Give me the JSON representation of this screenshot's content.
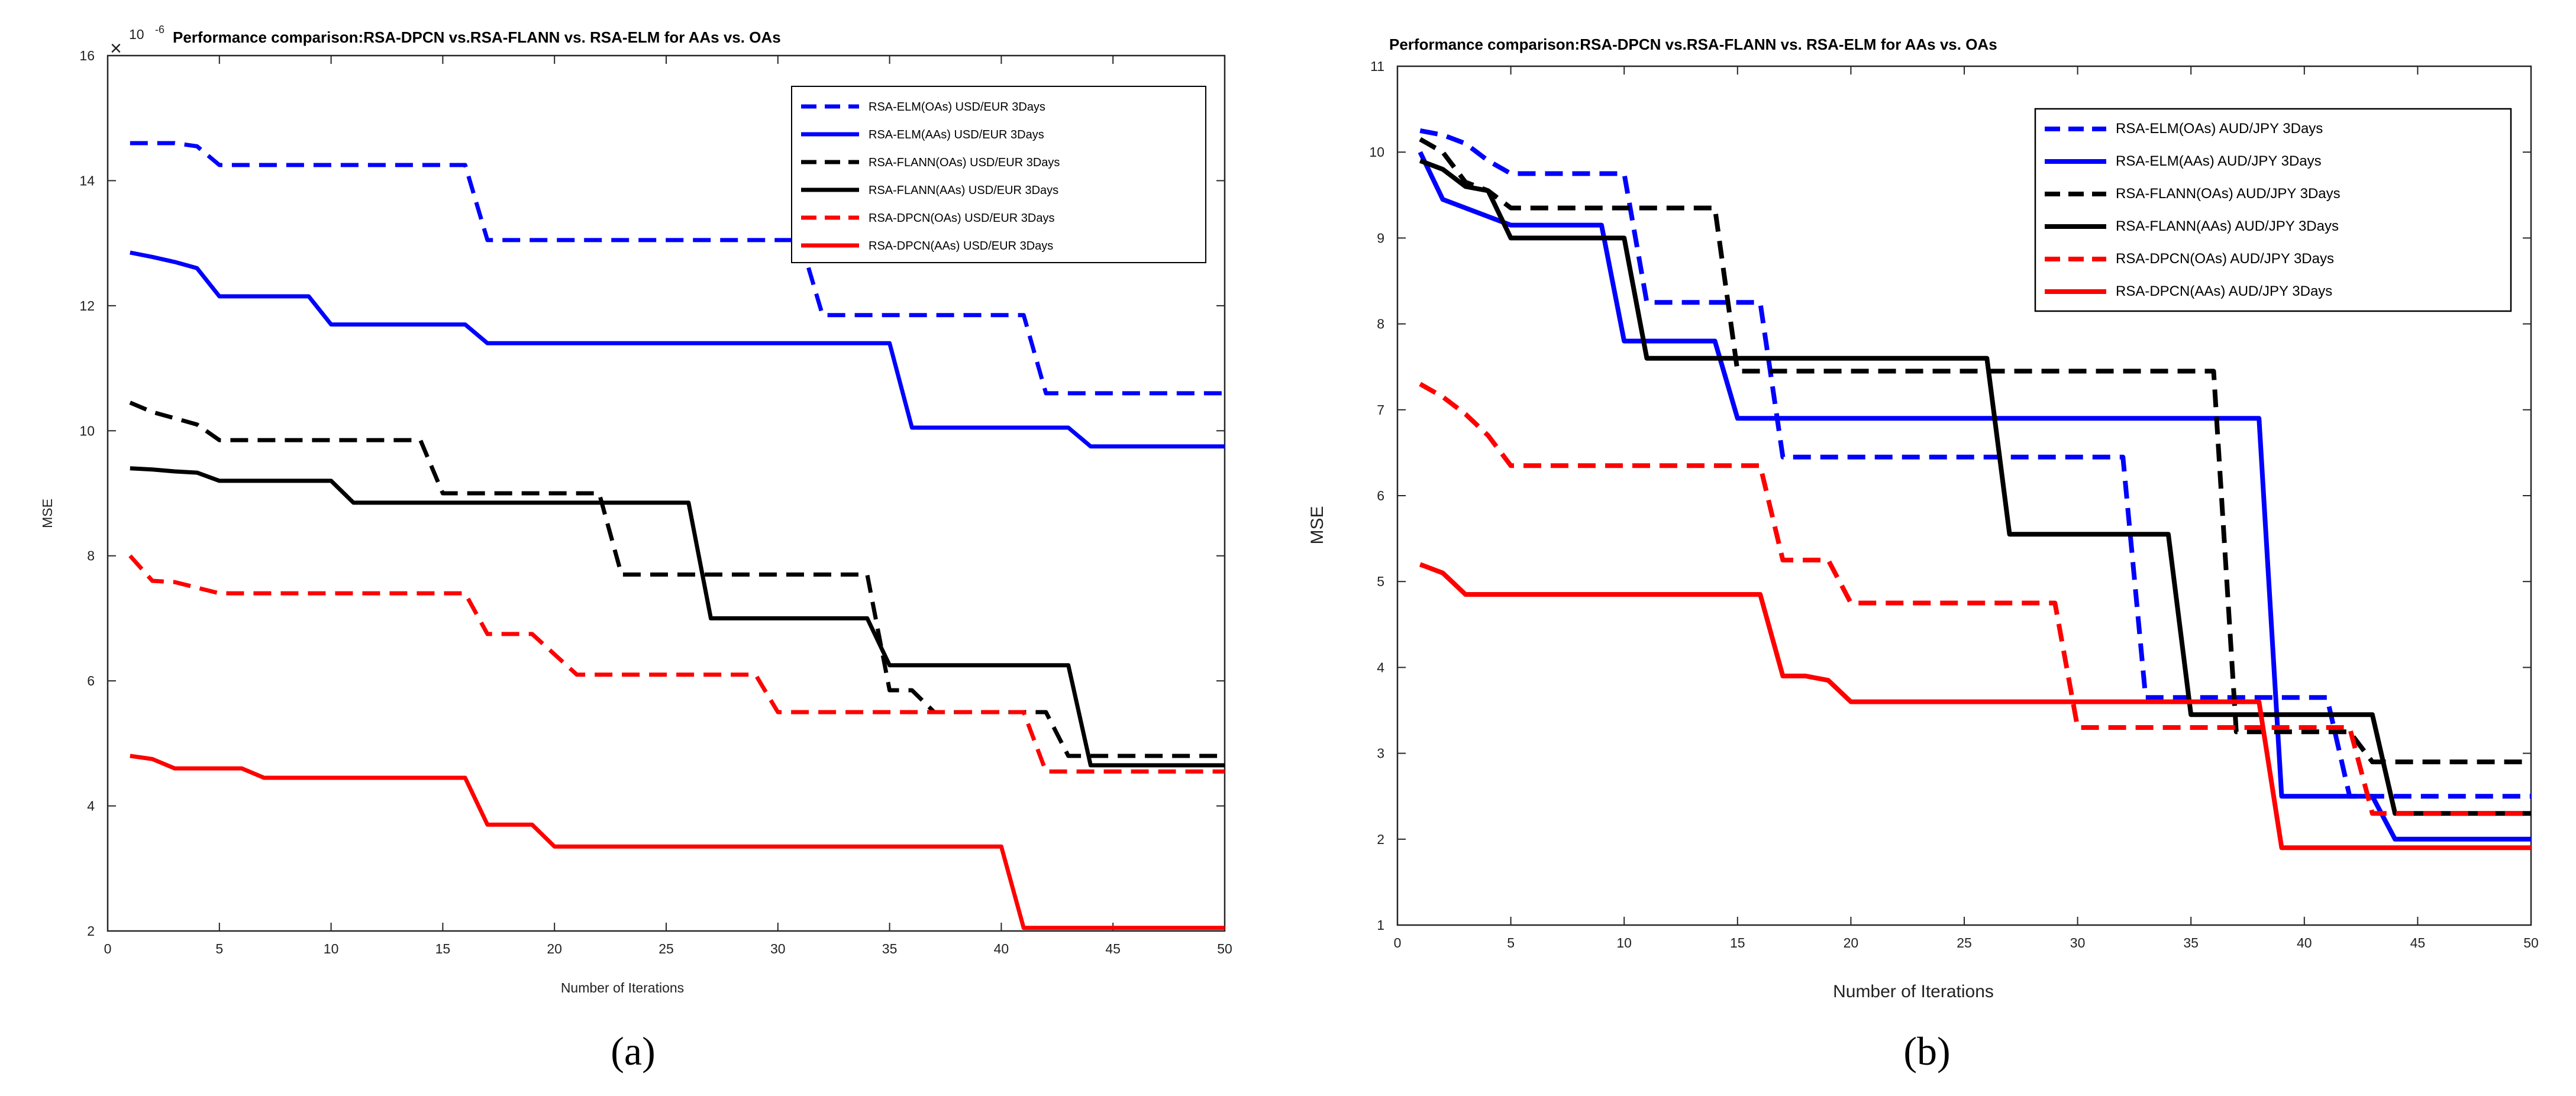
{
  "chart_data": [
    {
      "type": "line",
      "panel": "a",
      "caption": "(a)",
      "title": "Performance comparison:RSA-DPCN vs.RSA-FLANN vs. RSA-ELM for AAs vs. OAs",
      "xlabel": "Number of Iterations",
      "ylabel": "MSE",
      "exponent": {
        "base": "10",
        "power": "-6",
        "symbol": "×"
      },
      "xlim": [
        0,
        50
      ],
      "ylim": [
        2,
        16
      ],
      "xticks": [
        0,
        5,
        10,
        15,
        20,
        25,
        30,
        35,
        40,
        45,
        50
      ],
      "yticks": [
        2,
        4,
        6,
        8,
        10,
        12,
        14,
        16
      ],
      "legend_position": "top-right",
      "series": [
        {
          "name": "RSA-ELM(OAs) USD/EUR 3Days",
          "color": "#0000ff",
          "dashed": true,
          "points": [
            [
              1,
              14.6
            ],
            [
              3,
              14.6
            ],
            [
              4,
              14.55
            ],
            [
              5,
              14.25
            ],
            [
              16,
              14.25
            ],
            [
              17,
              13.05
            ],
            [
              31,
              13.05
            ],
            [
              32,
              11.85
            ],
            [
              41,
              11.85
            ],
            [
              42,
              10.6
            ],
            [
              50,
              10.6
            ]
          ]
        },
        {
          "name": "RSA-ELM(AAs) USD/EUR 3Days",
          "color": "#0000ff",
          "dashed": false,
          "points": [
            [
              1,
              12.85
            ],
            [
              2,
              12.78
            ],
            [
              3,
              12.7
            ],
            [
              4,
              12.6
            ],
            [
              5,
              12.15
            ],
            [
              9,
              12.15
            ],
            [
              10,
              11.7
            ],
            [
              16,
              11.7
            ],
            [
              17,
              11.4
            ],
            [
              35,
              11.4
            ],
            [
              36,
              10.05
            ],
            [
              43,
              10.05
            ],
            [
              44,
              9.75
            ],
            [
              50,
              9.75
            ]
          ]
        },
        {
          "name": "RSA-FLANN(OAs) USD/EUR 3Days",
          "color": "#000000",
          "dashed": true,
          "points": [
            [
              1,
              10.45
            ],
            [
              2,
              10.3
            ],
            [
              3,
              10.2
            ],
            [
              4,
              10.1
            ],
            [
              5,
              9.85
            ],
            [
              14,
              9.85
            ],
            [
              15,
              9.0
            ],
            [
              22,
              9.0
            ],
            [
              23,
              7.7
            ],
            [
              34,
              7.7
            ],
            [
              35,
              5.85
            ],
            [
              36,
              5.85
            ],
            [
              37,
              5.5
            ],
            [
              42,
              5.5
            ],
            [
              43,
              4.8
            ],
            [
              50,
              4.8
            ]
          ]
        },
        {
          "name": "RSA-FLANN(AAs) USD/EUR 3Days",
          "color": "#000000",
          "dashed": false,
          "points": [
            [
              1,
              9.4
            ],
            [
              2,
              9.38
            ],
            [
              3,
              9.35
            ],
            [
              4,
              9.33
            ],
            [
              5,
              9.2
            ],
            [
              10,
              9.2
            ],
            [
              11,
              8.85
            ],
            [
              26,
              8.85
            ],
            [
              27,
              7.0
            ],
            [
              34,
              7.0
            ],
            [
              35,
              6.25
            ],
            [
              43,
              6.25
            ],
            [
              44,
              4.65
            ],
            [
              50,
              4.65
            ]
          ]
        },
        {
          "name": "RSA-DPCN(OAs) USD/EUR 3Days",
          "color": "#ff0000",
          "dashed": true,
          "points": [
            [
              1,
              8.0
            ],
            [
              2,
              7.6
            ],
            [
              3,
              7.58
            ],
            [
              5,
              7.4
            ],
            [
              16,
              7.4
            ],
            [
              17,
              6.75
            ],
            [
              19,
              6.75
            ],
            [
              21,
              6.1
            ],
            [
              29,
              6.1
            ],
            [
              30,
              5.5
            ],
            [
              41,
              5.5
            ],
            [
              42,
              4.55
            ],
            [
              50,
              4.55
            ]
          ]
        },
        {
          "name": "RSA-DPCN(AAs) USD/EUR 3Days",
          "color": "#ff0000",
          "dashed": false,
          "points": [
            [
              1,
              4.8
            ],
            [
              2,
              4.75
            ],
            [
              3,
              4.6
            ],
            [
              6,
              4.6
            ],
            [
              7,
              4.45
            ],
            [
              16,
              4.45
            ],
            [
              17,
              3.7
            ],
            [
              19,
              3.7
            ],
            [
              20,
              3.35
            ],
            [
              40,
              3.35
            ],
            [
              41,
              2.05
            ],
            [
              50,
              2.05
            ]
          ]
        }
      ]
    },
    {
      "type": "line",
      "panel": "b",
      "caption": "(b)",
      "title": "Performance comparison:RSA-DPCN vs.RSA-FLANN vs. RSA-ELM for AAs vs. OAs",
      "xlabel": "Number of Iterations",
      "ylabel": "MSE",
      "xlim": [
        0,
        50
      ],
      "ylim": [
        1,
        11
      ],
      "xticks": [
        0,
        5,
        10,
        15,
        20,
        25,
        30,
        35,
        40,
        45,
        50
      ],
      "yticks": [
        1,
        2,
        3,
        4,
        5,
        6,
        7,
        8,
        9,
        10,
        11
      ],
      "legend_position": "top-right",
      "series": [
        {
          "name": "RSA-ELM(OAs) AUD/JPY 3Days",
          "color": "#0000ff",
          "dashed": true,
          "points": [
            [
              1,
              10.25
            ],
            [
              2,
              10.2
            ],
            [
              3,
              10.1
            ],
            [
              4,
              9.9
            ],
            [
              5,
              9.75
            ],
            [
              10,
              9.75
            ],
            [
              11,
              8.25
            ],
            [
              16,
              8.25
            ],
            [
              17,
              6.45
            ],
            [
              32,
              6.45
            ],
            [
              33,
              3.65
            ],
            [
              41,
              3.65
            ],
            [
              42,
              2.5
            ],
            [
              50,
              2.5
            ]
          ]
        },
        {
          "name": "RSA-ELM(AAs) AUD/JPY 3Days",
          "color": "#0000ff",
          "dashed": false,
          "points": [
            [
              1,
              10.0
            ],
            [
              2,
              9.45
            ],
            [
              3,
              9.35
            ],
            [
              4,
              9.25
            ],
            [
              5,
              9.15
            ],
            [
              9,
              9.15
            ],
            [
              10,
              7.8
            ],
            [
              14,
              7.8
            ],
            [
              15,
              6.9
            ],
            [
              38,
              6.9
            ],
            [
              39,
              2.5
            ],
            [
              43,
              2.5
            ],
            [
              44,
              2.0
            ],
            [
              50,
              2.0
            ]
          ]
        },
        {
          "name": "RSA-FLANN(OAs) AUD/JPY 3Days",
          "color": "#000000",
          "dashed": true,
          "points": [
            [
              1,
              10.15
            ],
            [
              2,
              10.0
            ],
            [
              3,
              9.65
            ],
            [
              4,
              9.55
            ],
            [
              5,
              9.35
            ],
            [
              14,
              9.35
            ],
            [
              15,
              7.45
            ],
            [
              36,
              7.45
            ],
            [
              37,
              3.25
            ],
            [
              42,
              3.25
            ],
            [
              43,
              2.9
            ],
            [
              50,
              2.9
            ]
          ]
        },
        {
          "name": "RSA-FLANN(AAs) AUD/JPY 3Days",
          "color": "#000000",
          "dashed": false,
          "points": [
            [
              1,
              9.9
            ],
            [
              2,
              9.8
            ],
            [
              3,
              9.6
            ],
            [
              4,
              9.55
            ],
            [
              5,
              9.0
            ],
            [
              10,
              9.0
            ],
            [
              11,
              7.6
            ],
            [
              26,
              7.6
            ],
            [
              27,
              5.55
            ],
            [
              34,
              5.55
            ],
            [
              35,
              3.45
            ],
            [
              43,
              3.45
            ],
            [
              44,
              2.3
            ],
            [
              50,
              2.3
            ]
          ]
        },
        {
          "name": "RSA-DPCN(OAs) AUD/JPY 3Days",
          "color": "#ff0000",
          "dashed": true,
          "points": [
            [
              1,
              7.3
            ],
            [
              2,
              7.15
            ],
            [
              3,
              6.95
            ],
            [
              4,
              6.7
            ],
            [
              5,
              6.35
            ],
            [
              16,
              6.35
            ],
            [
              17,
              5.25
            ],
            [
              19,
              5.25
            ],
            [
              20,
              4.75
            ],
            [
              29,
              4.75
            ],
            [
              30,
              3.3
            ],
            [
              42,
              3.3
            ],
            [
              43,
              2.3
            ],
            [
              50,
              2.3
            ]
          ]
        },
        {
          "name": "RSA-DPCN(AAs) AUD/JPY 3Days",
          "color": "#ff0000",
          "dashed": false,
          "points": [
            [
              1,
              5.2
            ],
            [
              2,
              5.1
            ],
            [
              3,
              4.85
            ],
            [
              16,
              4.85
            ],
            [
              17,
              3.9
            ],
            [
              18,
              3.9
            ],
            [
              19,
              3.85
            ],
            [
              20,
              3.6
            ],
            [
              38,
              3.6
            ],
            [
              39,
              1.9
            ],
            [
              50,
              1.9
            ]
          ]
        }
      ]
    }
  ]
}
